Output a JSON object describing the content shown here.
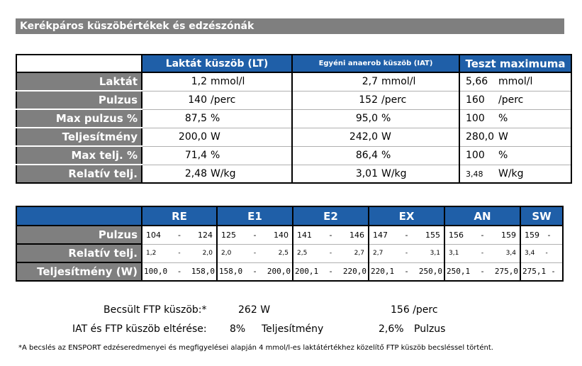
{
  "title": "Kerékpáros küszöbértékek és edzészónák",
  "thresholds": {
    "headers": [
      "Laktát küszöb (LT)",
      "Egyéni anaerob küszöb (IAT)",
      "Teszt maximuma"
    ],
    "rows": [
      {
        "label": "Laktát",
        "lt": "1,2",
        "lt_unit": "mmol/l",
        "iat": "2,7",
        "iat_unit": "mmol/l",
        "max": "5,66",
        "max_unit": "mmol/l"
      },
      {
        "label": "Pulzus",
        "lt": "140",
        "lt_unit": "/perc",
        "iat": "152",
        "iat_unit": "/perc",
        "max": "160",
        "max_unit": "/perc"
      },
      {
        "label": "Max pulzus %",
        "lt": "87,5",
        "lt_unit": "%",
        "iat": "95,0",
        "iat_unit": "%",
        "max": "100",
        "max_unit": "%"
      },
      {
        "label": "Teljesítmény",
        "lt": "200,0",
        "lt_unit": "W",
        "iat": "242,0",
        "iat_unit": "W",
        "max": "280,0",
        "max_unit": "W"
      },
      {
        "label": "Max telj. %",
        "lt": "71,4",
        "lt_unit": "%",
        "iat": "86,4",
        "iat_unit": "%",
        "max": "100",
        "max_unit": "%"
      },
      {
        "label": "Relatív telj.",
        "lt": "2,48",
        "lt_unit": "W/kg",
        "iat": "3,01",
        "iat_unit": "W/kg",
        "max": "3,48",
        "max_unit": "W/kg"
      }
    ]
  },
  "zones": {
    "headers": [
      "RE",
      "E1",
      "E2",
      "EX",
      "AN",
      "SW"
    ],
    "rows": [
      {
        "label": "Pulzus",
        "cells": [
          [
            "104",
            "-",
            "124"
          ],
          [
            "125",
            "-",
            "140"
          ],
          [
            "141",
            "-",
            "146"
          ],
          [
            "147",
            "-",
            "155"
          ],
          [
            "156",
            "-",
            "159"
          ],
          [
            "159",
            "-",
            ""
          ]
        ]
      },
      {
        "label": "Relatív telj.",
        "cells": [
          [
            "1,2",
            "-",
            "2,0"
          ],
          [
            "2,0",
            "-",
            "2,5"
          ],
          [
            "2,5",
            "-",
            "2,7"
          ],
          [
            "2,7",
            "-",
            "3,1"
          ],
          [
            "3,1",
            "-",
            "3,4"
          ],
          [
            "3,4",
            "-",
            ""
          ]
        ]
      },
      {
        "label": "Teljesítmény (W)",
        "cells": [
          [
            "100,0",
            "-",
            "158,0"
          ],
          [
            "158,0",
            "-",
            "200,0"
          ],
          [
            "200,1",
            "-",
            "220,0"
          ],
          [
            "220,1",
            "-",
            "250,0"
          ],
          [
            "250,1",
            "-",
            "275,0"
          ],
          [
            "275,1",
            "-",
            ""
          ]
        ]
      }
    ]
  },
  "ftp": {
    "label": "Becsült FTP küszöb:*",
    "power": "262",
    "power_unit": "W",
    "hr": "156",
    "hr_unit": "/perc"
  },
  "diff": {
    "label": "IAT és FTP küszöb eltérése:",
    "power_pct": "8%",
    "power_label": "Teljesítmény",
    "hr_pct": "2,6%",
    "hr_label": "Pulzus"
  },
  "footnote": "*A becslés az ENSPORT edzéseredmenyei és megfigyelései alapján 4 mmol/l-es laktátértékhez közelítő FTP küszöb becsléssel történt."
}
